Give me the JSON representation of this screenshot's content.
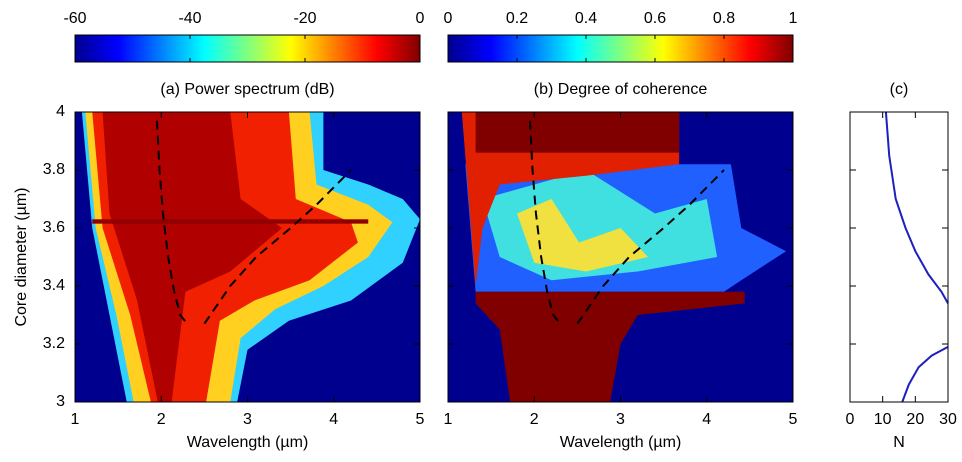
{
  "chart_data": [
    {
      "type": "line",
      "title": "(a) Power spectrum (dB)",
      "xlabel": "Wavelength (µm)",
      "ylabel": "Core diameter (µm)",
      "xlim": [
        1,
        5
      ],
      "xticks": [
        1,
        2,
        3,
        4,
        5
      ],
      "ylim": [
        3,
        4
      ],
      "yticks": [
        3,
        3.2,
        3.4,
        3.6,
        3.8,
        4
      ],
      "colorbar": {
        "lim": [
          -60,
          0
        ],
        "ticks": [
          -60,
          -40,
          -20,
          0
        ],
        "colormap": "jet"
      },
      "series": [
        {
          "color": "#000000",
          "dash": true,
          "x": [
            1.95,
            1.98,
            2.02,
            2.08,
            2.15,
            2.22,
            2.3
          ],
          "values": [
            3.97,
            3.8,
            3.65,
            3.5,
            3.38,
            3.3,
            3.27
          ]
        },
        {
          "color": "#000000",
          "dash": true,
          "x": [
            2.5,
            2.8,
            3.1,
            3.5,
            3.8,
            4.2
          ],
          "values": [
            3.27,
            3.4,
            3.5,
            3.6,
            3.68,
            3.8
          ]
        }
      ]
    },
    {
      "type": "line",
      "title": "(b) Degree of coherence",
      "xlabel": "Wavelength (µm)",
      "xlim": [
        1,
        5
      ],
      "xticks": [
        1,
        2,
        3,
        4,
        5
      ],
      "ylim": [
        3,
        4
      ],
      "yticks": [
        3,
        3.2,
        3.4,
        3.6,
        3.8,
        4
      ],
      "ytick_labels": false,
      "colorbar": {
        "lim": [
          0,
          1
        ],
        "ticks": [
          0,
          0.2,
          0.4,
          0.6,
          0.8,
          1
        ],
        "colormap": "jet"
      },
      "series": [
        {
          "color": "#000000",
          "dash": true,
          "x": [
            1.95,
            1.98,
            2.02,
            2.08,
            2.15,
            2.22,
            2.3
          ],
          "values": [
            3.97,
            3.8,
            3.65,
            3.5,
            3.38,
            3.3,
            3.27
          ]
        },
        {
          "color": "#000000",
          "dash": true,
          "x": [
            2.5,
            2.8,
            3.1,
            3.5,
            3.8,
            4.2
          ],
          "values": [
            3.27,
            3.4,
            3.5,
            3.6,
            3.68,
            3.8
          ]
        }
      ]
    },
    {
      "type": "line",
      "title": "(c)",
      "xlabel": "N",
      "xlim": [
        0,
        30
      ],
      "xticks": [
        0,
        10,
        20,
        30
      ],
      "ylim": [
        3,
        4
      ],
      "yticks": [
        3,
        3.2,
        3.4,
        3.6,
        3.8,
        4
      ],
      "ytick_labels": false,
      "series": [
        {
          "color": "#1f1fbf",
          "dash": false,
          "x": [
            11,
            12,
            14,
            17,
            20,
            24,
            28,
            30
          ],
          "values": [
            4,
            3.85,
            3.7,
            3.6,
            3.52,
            3.44,
            3.38,
            3.34
          ]
        },
        {
          "color": "#1f1fbf",
          "dash": false,
          "x": [
            16,
            18,
            21,
            25,
            30
          ],
          "values": [
            3,
            3.06,
            3.12,
            3.16,
            3.19
          ]
        }
      ]
    }
  ]
}
